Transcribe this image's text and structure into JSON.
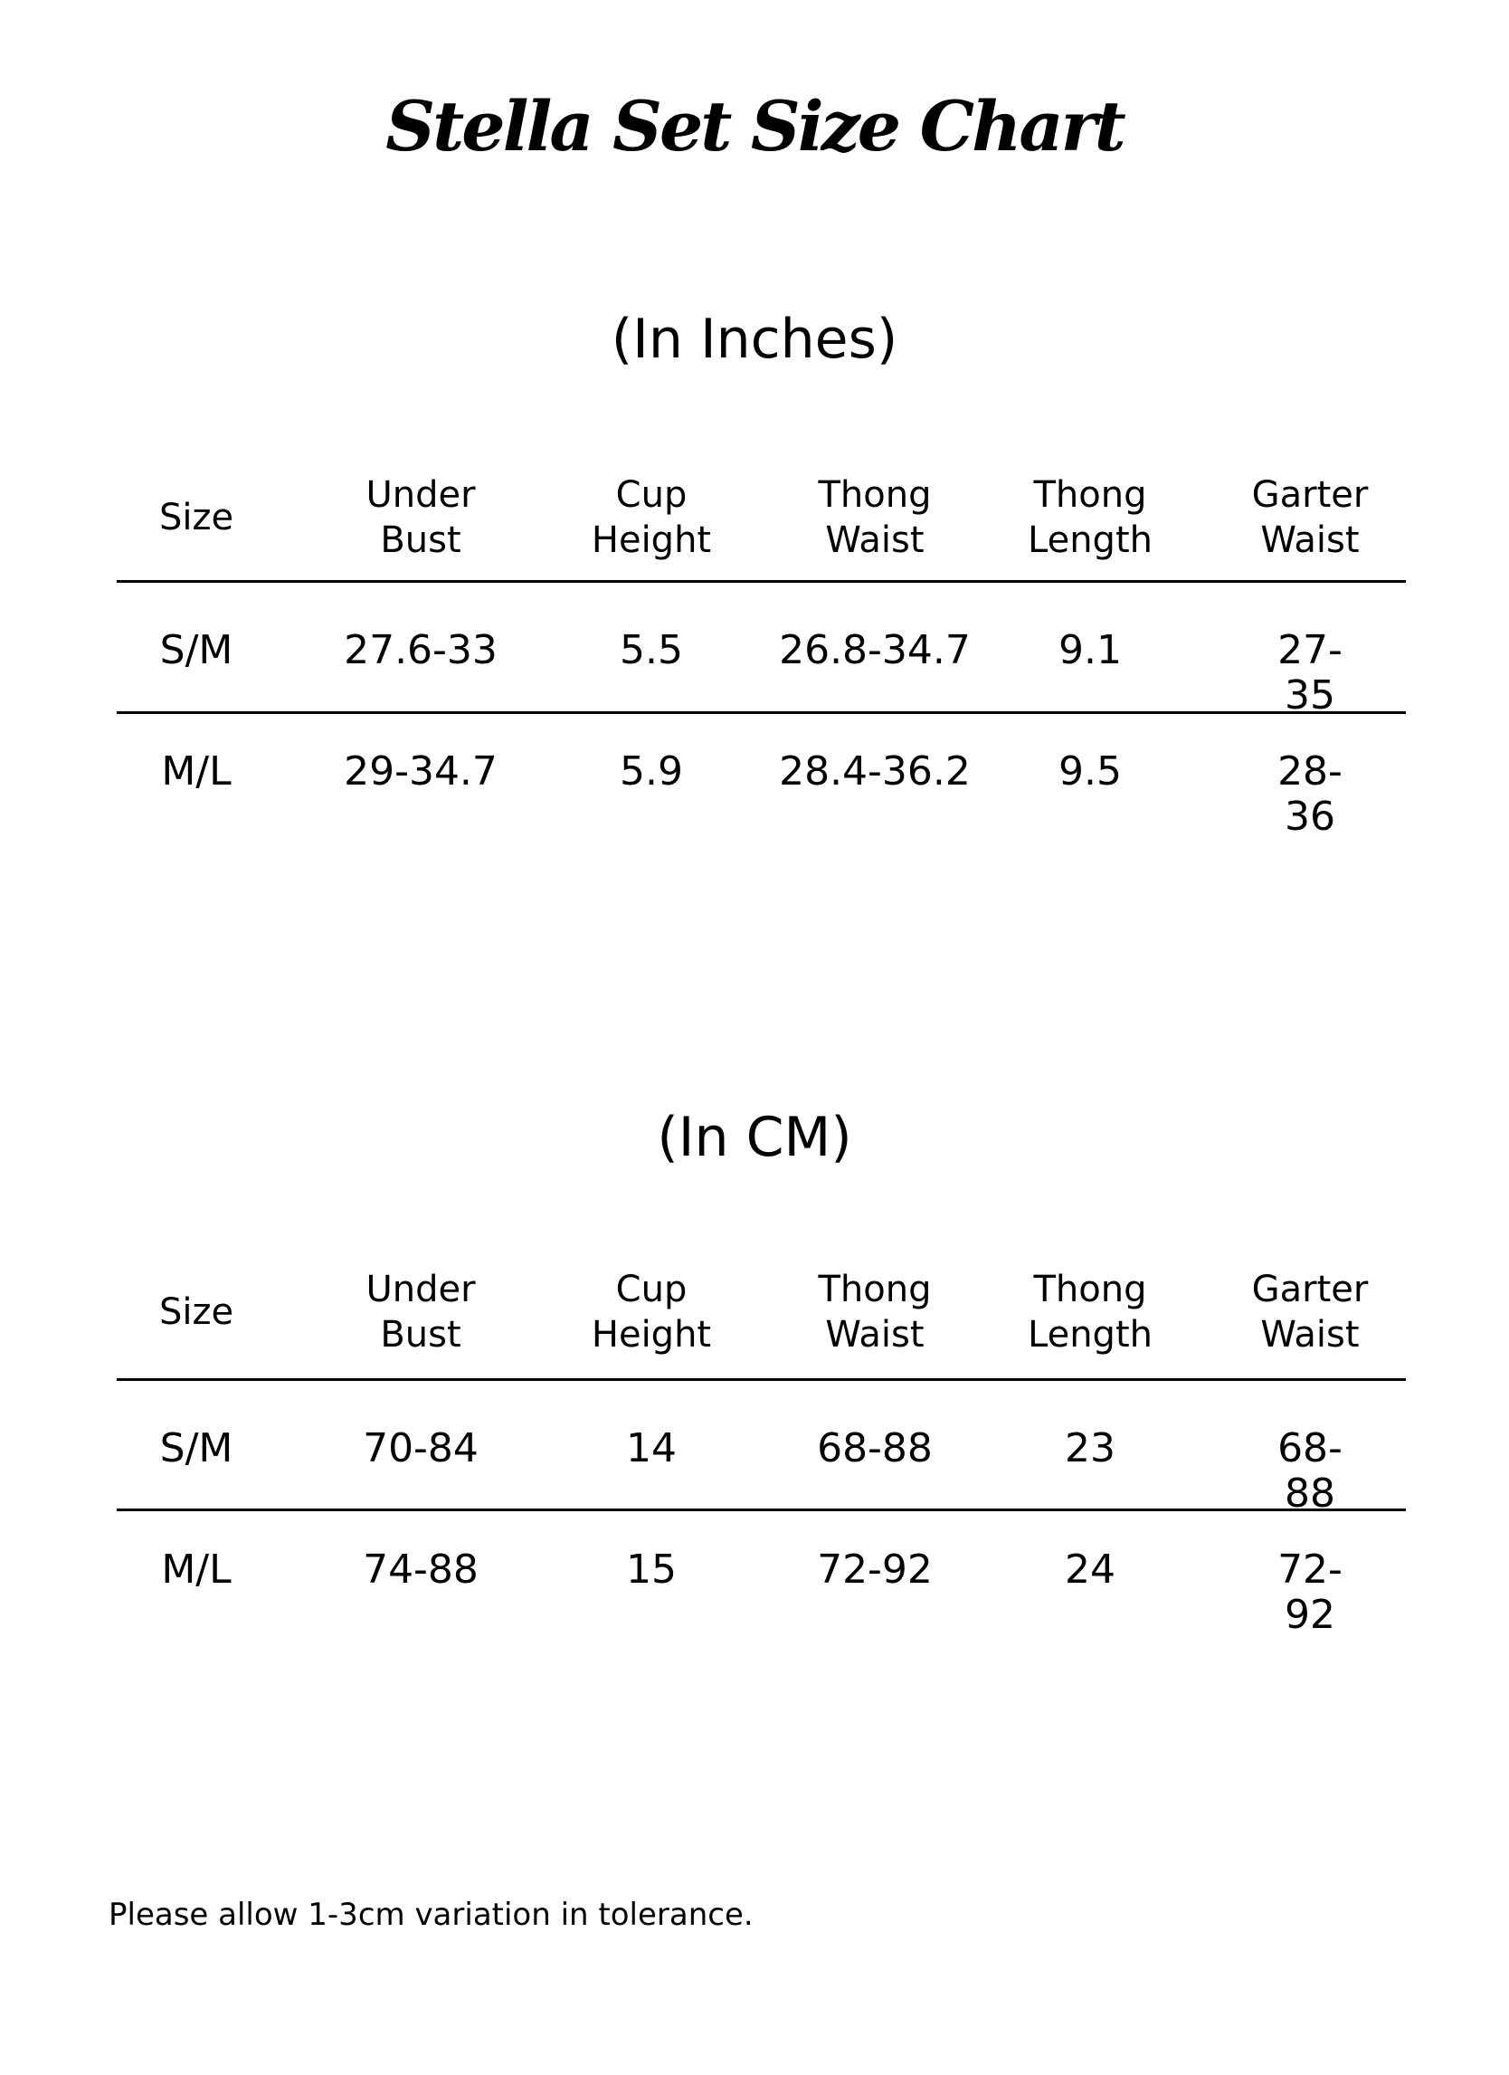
{
  "title": "Stella Set Size Chart",
  "tables": [
    {
      "unit_label": "(In Inches)",
      "headers": [
        "Size",
        "Under\nBust",
        "Cup\nHeight",
        "Thong\nWaist",
        "Thong\nLength",
        "Garter\nWaist"
      ],
      "rows": [
        [
          "S/M",
          "27.6-33",
          "5.5",
          "26.8-34.7",
          "9.1",
          "27-35"
        ],
        [
          "M/L",
          "29-34.7",
          "5.9",
          "28.4-36.2",
          "9.5",
          "28-36"
        ]
      ]
    },
    {
      "unit_label": "(In CM)",
      "headers": [
        "Size",
        "Under\nBust",
        "Cup\nHeight",
        "Thong\nWaist",
        "Thong\nLength",
        "Garter\nWaist"
      ],
      "rows": [
        [
          "S/M",
          "70-84",
          "14",
          "68-88",
          "23",
          "68-88"
        ],
        [
          "M/L",
          "74-88",
          "15",
          "72-92",
          "24",
          "72-92"
        ]
      ]
    }
  ],
  "footer_note": "Please allow 1-3cm variation in tolerance."
}
